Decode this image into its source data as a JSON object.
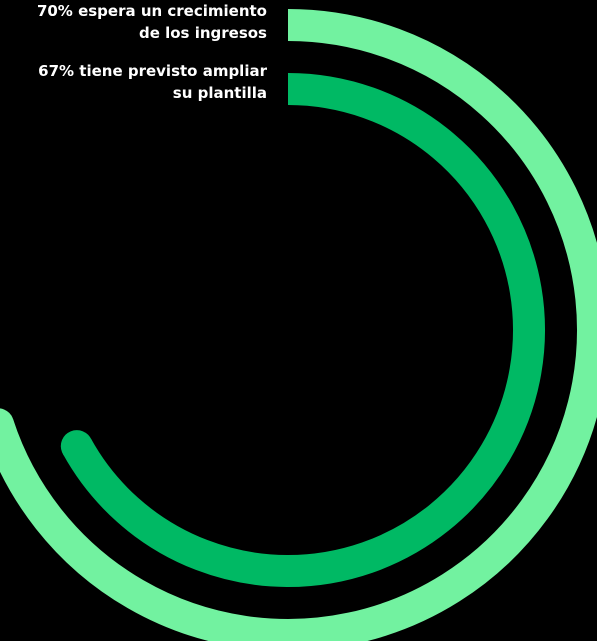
{
  "chart_data": {
    "type": "radial-bar",
    "series": [
      {
        "label": "70% espera un crecimiento\nde los ingresos",
        "value": 70,
        "color": "#72f2a0"
      },
      {
        "label": "67% tiene previsto ampliar\nsu plantilla",
        "value": 67,
        "color": "#00b964"
      }
    ],
    "max": 100,
    "background": "#000000"
  }
}
